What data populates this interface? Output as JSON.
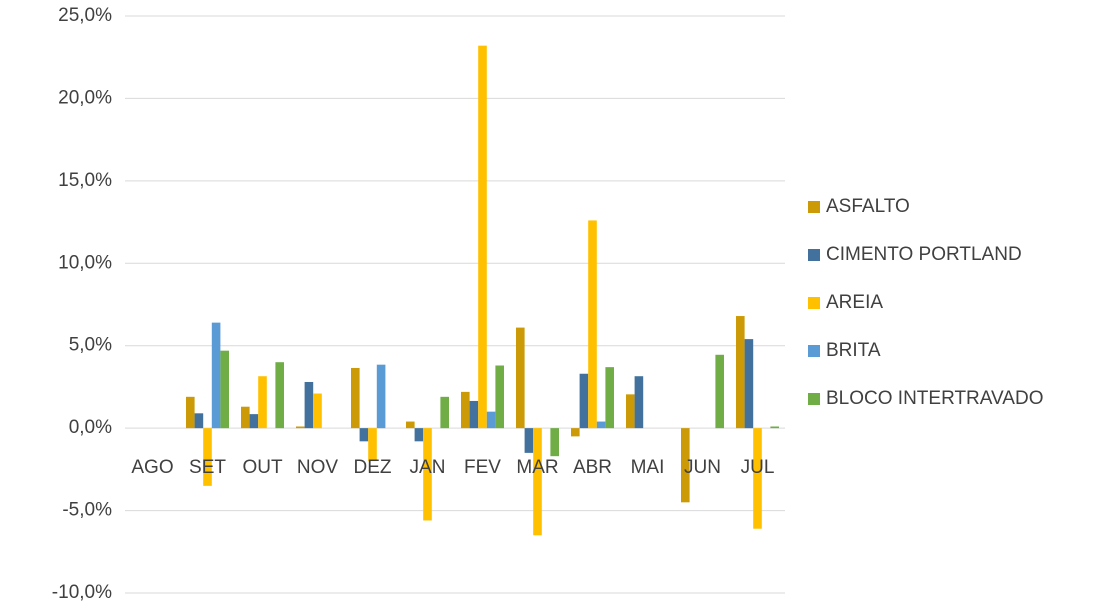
{
  "chart_data": {
    "type": "bar",
    "categories": [
      "AGO",
      "SET",
      "OUT",
      "NOV",
      "DEZ",
      "JAN",
      "FEV",
      "MAR",
      "ABR",
      "MAI",
      "JUN",
      "JUL"
    ],
    "series": [
      {
        "name": "ASFALTO",
        "color": "#cc9a06",
        "values": [
          0,
          1.9,
          1.3,
          0.1,
          3.65,
          0.4,
          2.2,
          6.1,
          -0.5,
          2.05,
          -4.5,
          6.8
        ]
      },
      {
        "name": "CIMENTO PORTLAND",
        "color": "#41719c",
        "values": [
          0,
          0.9,
          0.85,
          2.8,
          -0.8,
          -0.8,
          1.65,
          -1.5,
          3.3,
          3.15,
          0,
          5.4
        ]
      },
      {
        "name": "AREIA",
        "color": "#ffc000",
        "values": [
          0,
          -3.5,
          3.15,
          2.1,
          -2.0,
          -5.6,
          23.2,
          -6.5,
          12.6,
          0,
          0,
          -6.1
        ]
      },
      {
        "name": "BRITA",
        "color": "#5b9bd5",
        "values": [
          0,
          6.4,
          0,
          0,
          3.85,
          0,
          1.0,
          0,
          0.4,
          0,
          0,
          0
        ]
      },
      {
        "name": "BLOCO INTERTRAVADO",
        "color": "#70ad47",
        "values": [
          0,
          4.7,
          4.0,
          0,
          0,
          1.9,
          3.8,
          -1.7,
          3.7,
          0,
          4.45,
          0.1
        ]
      }
    ],
    "ylim": [
      -10,
      25
    ],
    "yticks": [
      {
        "value": -10,
        "label": "-10,0%"
      },
      {
        "value": -5,
        "label": "-5,0%"
      },
      {
        "value": 0,
        "label": "0,0%"
      },
      {
        "value": 5,
        "label": "5,0%"
      },
      {
        "value": 10,
        "label": "10,0%"
      },
      {
        "value": 15,
        "label": "15,0%"
      },
      {
        "value": 20,
        "label": "20,0%"
      },
      {
        "value": 25,
        "label": "25,0%"
      }
    ],
    "grid": true,
    "legend": "right"
  }
}
